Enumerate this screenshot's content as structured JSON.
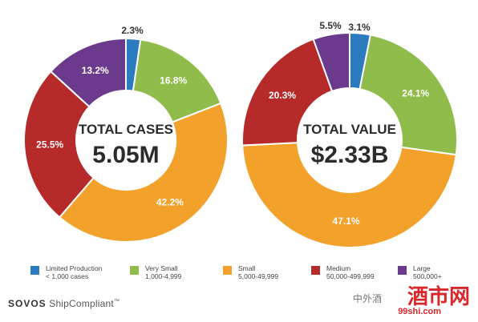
{
  "chart_data": [
    {
      "type": "pie",
      "center_label": "TOTAL CASES",
      "center_value": "5.05M",
      "slices": [
        {
          "category": "Limited Production",
          "value": 2.3,
          "label": "2.3%"
        },
        {
          "category": "Very Small",
          "value": 16.8,
          "label": "16.8%"
        },
        {
          "category": "Small",
          "value": 42.2,
          "label": "42.2%"
        },
        {
          "category": "Medium",
          "value": 25.5,
          "label": "25.5%"
        },
        {
          "category": "Large",
          "value": 13.2,
          "label": "13.2%"
        }
      ]
    },
    {
      "type": "pie",
      "center_label": "TOTAL VALUE",
      "center_value": "$2.33B",
      "slices": [
        {
          "category": "Limited Production",
          "value": 3.1,
          "label": "3.1%"
        },
        {
          "category": "Very Small",
          "value": 24.1,
          "label": "24.1%"
        },
        {
          "category": "Small",
          "value": 47.1,
          "label": "47.1%"
        },
        {
          "category": "Medium",
          "value": 20.3,
          "label": "20.3%"
        },
        {
          "category": "Large",
          "value": 5.5,
          "label": "5.5%"
        }
      ]
    }
  ],
  "legend": [
    {
      "name": "Limited Production",
      "range": "< 1,000 cases",
      "color": "#2b7bbf"
    },
    {
      "name": "Very Small",
      "range": "1,000-4,999",
      "color": "#8fbc4b"
    },
    {
      "name": "Small",
      "range": "5,000-49,999",
      "color": "#f2a12a"
    },
    {
      "name": "Medium",
      "range": "50,000-499,999",
      "color": "#b72a2a"
    },
    {
      "name": "Large",
      "range": "500,000+",
      "color": "#6b3a8c"
    }
  ],
  "brand": {
    "name": "SOVOS",
    "product": "ShipCompliant",
    "tm": "™"
  },
  "watermark": {
    "cn_text": "中外酒",
    "big_text": "酒市网",
    "url": "99shi.com"
  }
}
